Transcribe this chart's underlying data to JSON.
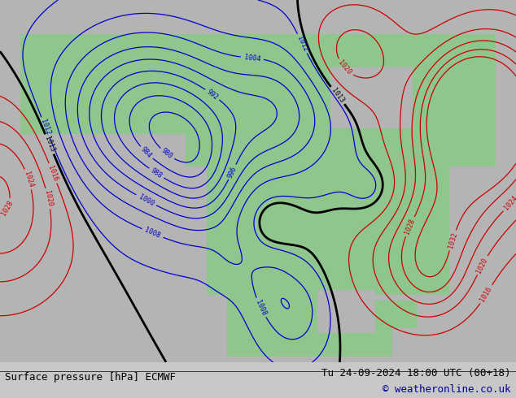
{
  "title_left": "Surface pressure [hPa] ECMWF",
  "title_right": "Tu 24-09-2024 18:00 UTC (00+18)",
  "copyright": "© weatheronline.co.uk",
  "bg_color": "#c8c8c8",
  "land_color": "#90c890",
  "ocean_color": "#b4b4b4",
  "blue_line_color": "#0000cc",
  "red_line_color": "#cc0000",
  "black_line_color": "#000000",
  "footer_fontsize": 9,
  "figsize": [
    6.34,
    4.9
  ],
  "dpi": 100,
  "lon_min": -175,
  "lon_max": -50,
  "lat_min": 13,
  "lat_max": 78,
  "pressure_levels": [
    980,
    984,
    988,
    992,
    996,
    1000,
    1004,
    1008,
    1012,
    1013,
    1016,
    1020,
    1024,
    1028,
    1032
  ]
}
